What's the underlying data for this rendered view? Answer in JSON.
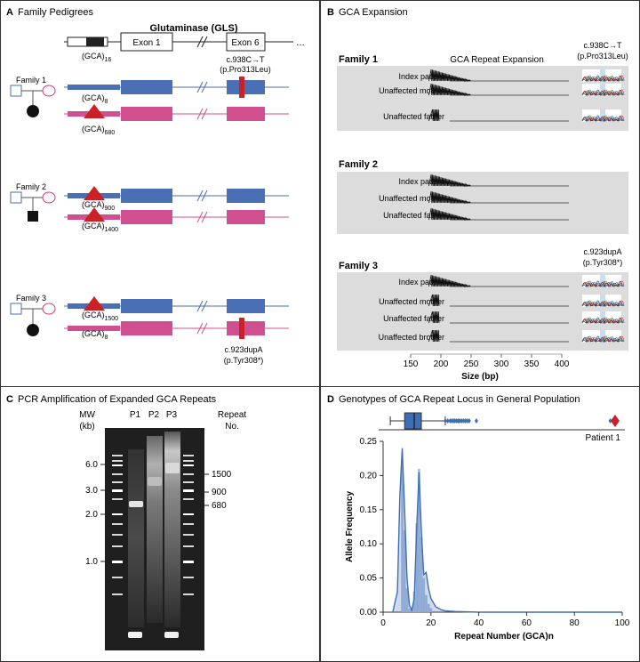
{
  "panels": {
    "a": {
      "letter": "A",
      "title": "Family Pedigrees",
      "gene_title": "Glutaminase (GLS)",
      "exon1_label": "Exon 1",
      "exon6_label": "Exon 6",
      "ellipsis": "…",
      "ref_repeat_base": "(GCA)",
      "ref_repeat_sub": "16",
      "mutation_top_line1": "c.938C→T",
      "mutation_top_line2": "(p.Pro313Leu)",
      "families": [
        {
          "label": "Family 1",
          "allele_top_base": "(GCA)",
          "allele_top_sub": "8",
          "allele_bottom_base": "(GCA)",
          "allele_bottom_sub": "680"
        },
        {
          "label": "Family 2",
          "allele_top_base": "(GCA)",
          "allele_top_sub": "900",
          "allele_bottom_base": "(GCA)",
          "allele_bottom_sub": "1400"
        },
        {
          "label": "Family 3",
          "allele_top_base": "(GCA)",
          "allele_top_sub": "1500",
          "allele_bottom_base": "(GCA)",
          "allele_bottom_sub": "8"
        }
      ],
      "mutation_bottom_line1": "c.923dupA",
      "mutation_bottom_line2": "(p.Tyr308*)"
    },
    "b": {
      "letter": "B",
      "title": "GCA Expansion",
      "column_header": "GCA Repeat Expansion",
      "family1_label": "Family 1",
      "family1_mut_line1": "c.938C→T",
      "family1_mut_line2": "(p.Pro313Leu)",
      "family1_rows": [
        "Index patient",
        "Unaffected mother",
        "Unaffected father"
      ],
      "family2_label": "Family 2",
      "family2_rows": [
        "Index patient",
        "Unaffected mother",
        "Unaffected father"
      ],
      "family3_label": "Family 3",
      "family3_mut_line1": "c.923dupA",
      "family3_mut_line2": "(p.Tyr308*)",
      "family3_rows": [
        "Index patient",
        "Unaffected mother",
        "Unaffected father",
        "Unaffected brother"
      ],
      "x_ticks": [
        "150",
        "200",
        "250",
        "300",
        "350",
        "400"
      ],
      "x_label": "Size (bp)"
    },
    "c": {
      "letter": "C",
      "title": "PCR Amplification of Expanded GCA Repeats",
      "mw_label_line1": "MW",
      "mw_label_line2": "(kb)",
      "lanes": [
        "P1",
        "P2",
        "P3"
      ],
      "repeat_label_line1": "Repeat",
      "repeat_label_line2": "No.",
      "mw_ticks": [
        "6.0",
        "3.0",
        "2.0",
        "1.0"
      ],
      "repeat_ticks": [
        "1500",
        "900",
        "680"
      ]
    },
    "d": {
      "letter": "D",
      "title": "Genotypes of GCA Repeat Locus in General Population",
      "patient_label": "Patient 1",
      "accent_blue": "#3f6fb3",
      "accent_red": "#cc2027"
    }
  },
  "chart_data": {
    "type": "area",
    "title": "Genotypes of GCA Repeat Locus in General Population",
    "xlabel": "Repeat Number (GCA)n",
    "ylabel": "Allele Frequency",
    "xlim": [
      0,
      100
    ],
    "ylim": [
      0,
      0.25
    ],
    "x_ticks": [
      "0",
      "20",
      "40",
      "60",
      "80",
      "100"
    ],
    "y_ticks": [
      "0.00",
      "0.05",
      "0.10",
      "0.15",
      "0.20",
      "0.25"
    ],
    "histogram": {
      "x": [
        8,
        9,
        10,
        11,
        12,
        13,
        14,
        15,
        16,
        17,
        18,
        19,
        20
      ],
      "values": [
        0.215,
        0.12,
        0.035,
        0.005,
        0.005,
        0.03,
        0.13,
        0.21,
        0.11,
        0.05,
        0.025,
        0.012,
        0.006
      ]
    },
    "density": {
      "x": [
        4,
        6,
        7,
        8,
        9,
        10,
        11,
        12,
        13,
        14,
        15,
        16,
        17,
        18,
        19,
        20,
        22,
        24,
        26,
        30,
        40,
        100
      ],
      "y": [
        0,
        0.03,
        0.17,
        0.24,
        0.15,
        0.05,
        0.01,
        0.003,
        0.02,
        0.12,
        0.205,
        0.12,
        0.055,
        0.058,
        0.035,
        0.02,
        0.008,
        0.004,
        0.002,
        0.001,
        0,
        0
      ]
    },
    "boxplot": {
      "whisker_low": 3,
      "q1": 9,
      "median": 13,
      "q3": 16,
      "whisker_high": 26,
      "outliers": [
        26,
        27,
        28,
        28.7,
        29.4,
        30,
        30.7,
        31.4,
        32,
        32.8,
        33.6,
        34.4,
        35.2,
        36,
        39
      ],
      "patient_value": 97,
      "near_patient_outlier": 95
    }
  }
}
